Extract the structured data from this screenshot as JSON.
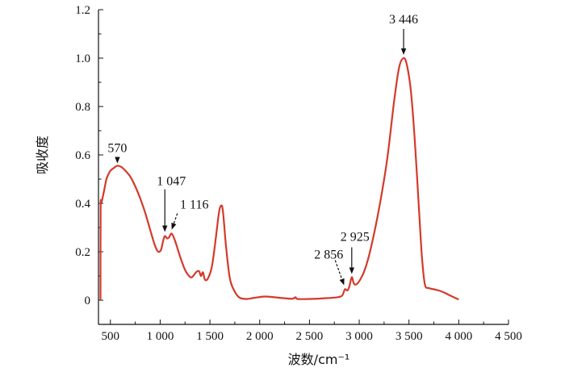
{
  "chart_data": {
    "type": "line",
    "title": "",
    "xlabel": "波数/cm⁻¹",
    "ylabel": "吸收度",
    "xlim": [
      380,
      4500
    ],
    "ylim": [
      0,
      1.2
    ],
    "x_ticks": [
      {
        "value": 500,
        "label": "500"
      },
      {
        "value": 1000,
        "label": "1 000"
      },
      {
        "value": 1500,
        "label": "1 500"
      },
      {
        "value": 2000,
        "label": "2 000"
      },
      {
        "value": 2500,
        "label": "2 500"
      },
      {
        "value": 3000,
        "label": "3 000"
      },
      {
        "value": 3500,
        "label": "3 500"
      },
      {
        "value": 4000,
        "label": "4 000"
      },
      {
        "value": 4500,
        "label": "4 500"
      }
    ],
    "y_ticks": [
      {
        "value": 0,
        "label": "0"
      },
      {
        "value": 0.2,
        "label": "0.2"
      },
      {
        "value": 0.4,
        "label": "0.4"
      },
      {
        "value": 0.6,
        "label": "0.6"
      },
      {
        "value": 0.8,
        "label": "0.8"
      },
      {
        "value": 1.0,
        "label": "1.0"
      },
      {
        "value": 1.2,
        "label": "1.2"
      }
    ],
    "grid": false,
    "series": [
      {
        "color": "#d43a2a",
        "points": [
          [
            400,
            0.0
          ],
          [
            402,
            0.38
          ],
          [
            408,
            0.4
          ],
          [
            420,
            0.42
          ],
          [
            440,
            0.46
          ],
          [
            460,
            0.5
          ],
          [
            480,
            0.52
          ],
          [
            500,
            0.535
          ],
          [
            530,
            0.545
          ],
          [
            570,
            0.555
          ],
          [
            610,
            0.55
          ],
          [
            650,
            0.535
          ],
          [
            700,
            0.51
          ],
          [
            750,
            0.47
          ],
          [
            800,
            0.42
          ],
          [
            850,
            0.36
          ],
          [
            900,
            0.29
          ],
          [
            940,
            0.235
          ],
          [
            970,
            0.205
          ],
          [
            990,
            0.2
          ],
          [
            1010,
            0.21
          ],
          [
            1030,
            0.245
          ],
          [
            1047,
            0.265
          ],
          [
            1070,
            0.255
          ],
          [
            1090,
            0.26
          ],
          [
            1116,
            0.275
          ],
          [
            1150,
            0.245
          ],
          [
            1200,
            0.18
          ],
          [
            1250,
            0.125
          ],
          [
            1290,
            0.1
          ],
          [
            1320,
            0.095
          ],
          [
            1360,
            0.115
          ],
          [
            1390,
            0.12
          ],
          [
            1410,
            0.1
          ],
          [
            1430,
            0.115
          ],
          [
            1450,
            0.085
          ],
          [
            1480,
            0.09
          ],
          [
            1520,
            0.14
          ],
          [
            1560,
            0.26
          ],
          [
            1590,
            0.36
          ],
          [
            1610,
            0.39
          ],
          [
            1630,
            0.37
          ],
          [
            1660,
            0.23
          ],
          [
            1700,
            0.09
          ],
          [
            1750,
            0.035
          ],
          [
            1800,
            0.01
          ],
          [
            1870,
            0.005
          ],
          [
            1950,
            0.01
          ],
          [
            2050,
            0.015
          ],
          [
            2150,
            0.012
          ],
          [
            2250,
            0.008
          ],
          [
            2330,
            0.006
          ],
          [
            2360,
            0.012
          ],
          [
            2380,
            0.005
          ],
          [
            2500,
            0.005
          ],
          [
            2650,
            0.008
          ],
          [
            2780,
            0.012
          ],
          [
            2830,
            0.02
          ],
          [
            2856,
            0.045
          ],
          [
            2880,
            0.04
          ],
          [
            2900,
            0.055
          ],
          [
            2925,
            0.095
          ],
          [
            2945,
            0.07
          ],
          [
            2970,
            0.065
          ],
          [
            3010,
            0.085
          ],
          [
            3060,
            0.13
          ],
          [
            3120,
            0.22
          ],
          [
            3200,
            0.38
          ],
          [
            3280,
            0.58
          ],
          [
            3350,
            0.82
          ],
          [
            3400,
            0.96
          ],
          [
            3446,
            1.0
          ],
          [
            3480,
            0.97
          ],
          [
            3520,
            0.86
          ],
          [
            3560,
            0.65
          ],
          [
            3600,
            0.38
          ],
          [
            3630,
            0.18
          ],
          [
            3660,
            0.065
          ],
          [
            3700,
            0.05
          ],
          [
            3750,
            0.045
          ],
          [
            3800,
            0.04
          ],
          [
            3850,
            0.032
          ],
          [
            3900,
            0.022
          ],
          [
            3950,
            0.012
          ],
          [
            4000,
            0.003
          ]
        ]
      }
    ],
    "annotations": [
      {
        "text": "570",
        "x": 570,
        "y": 0.555,
        "style": "solid"
      },
      {
        "text": "1 047",
        "x": 1047,
        "y": 0.265,
        "style": "solid"
      },
      {
        "text": "1 116",
        "x": 1116,
        "y": 0.275,
        "style": "dashed"
      },
      {
        "text": "2 856",
        "x": 2856,
        "y": 0.045,
        "style": "dashed"
      },
      {
        "text": "2 925",
        "x": 2925,
        "y": 0.095,
        "style": "solid"
      },
      {
        "text": "3 446",
        "x": 3446,
        "y": 1.0,
        "style": "solid"
      }
    ]
  }
}
